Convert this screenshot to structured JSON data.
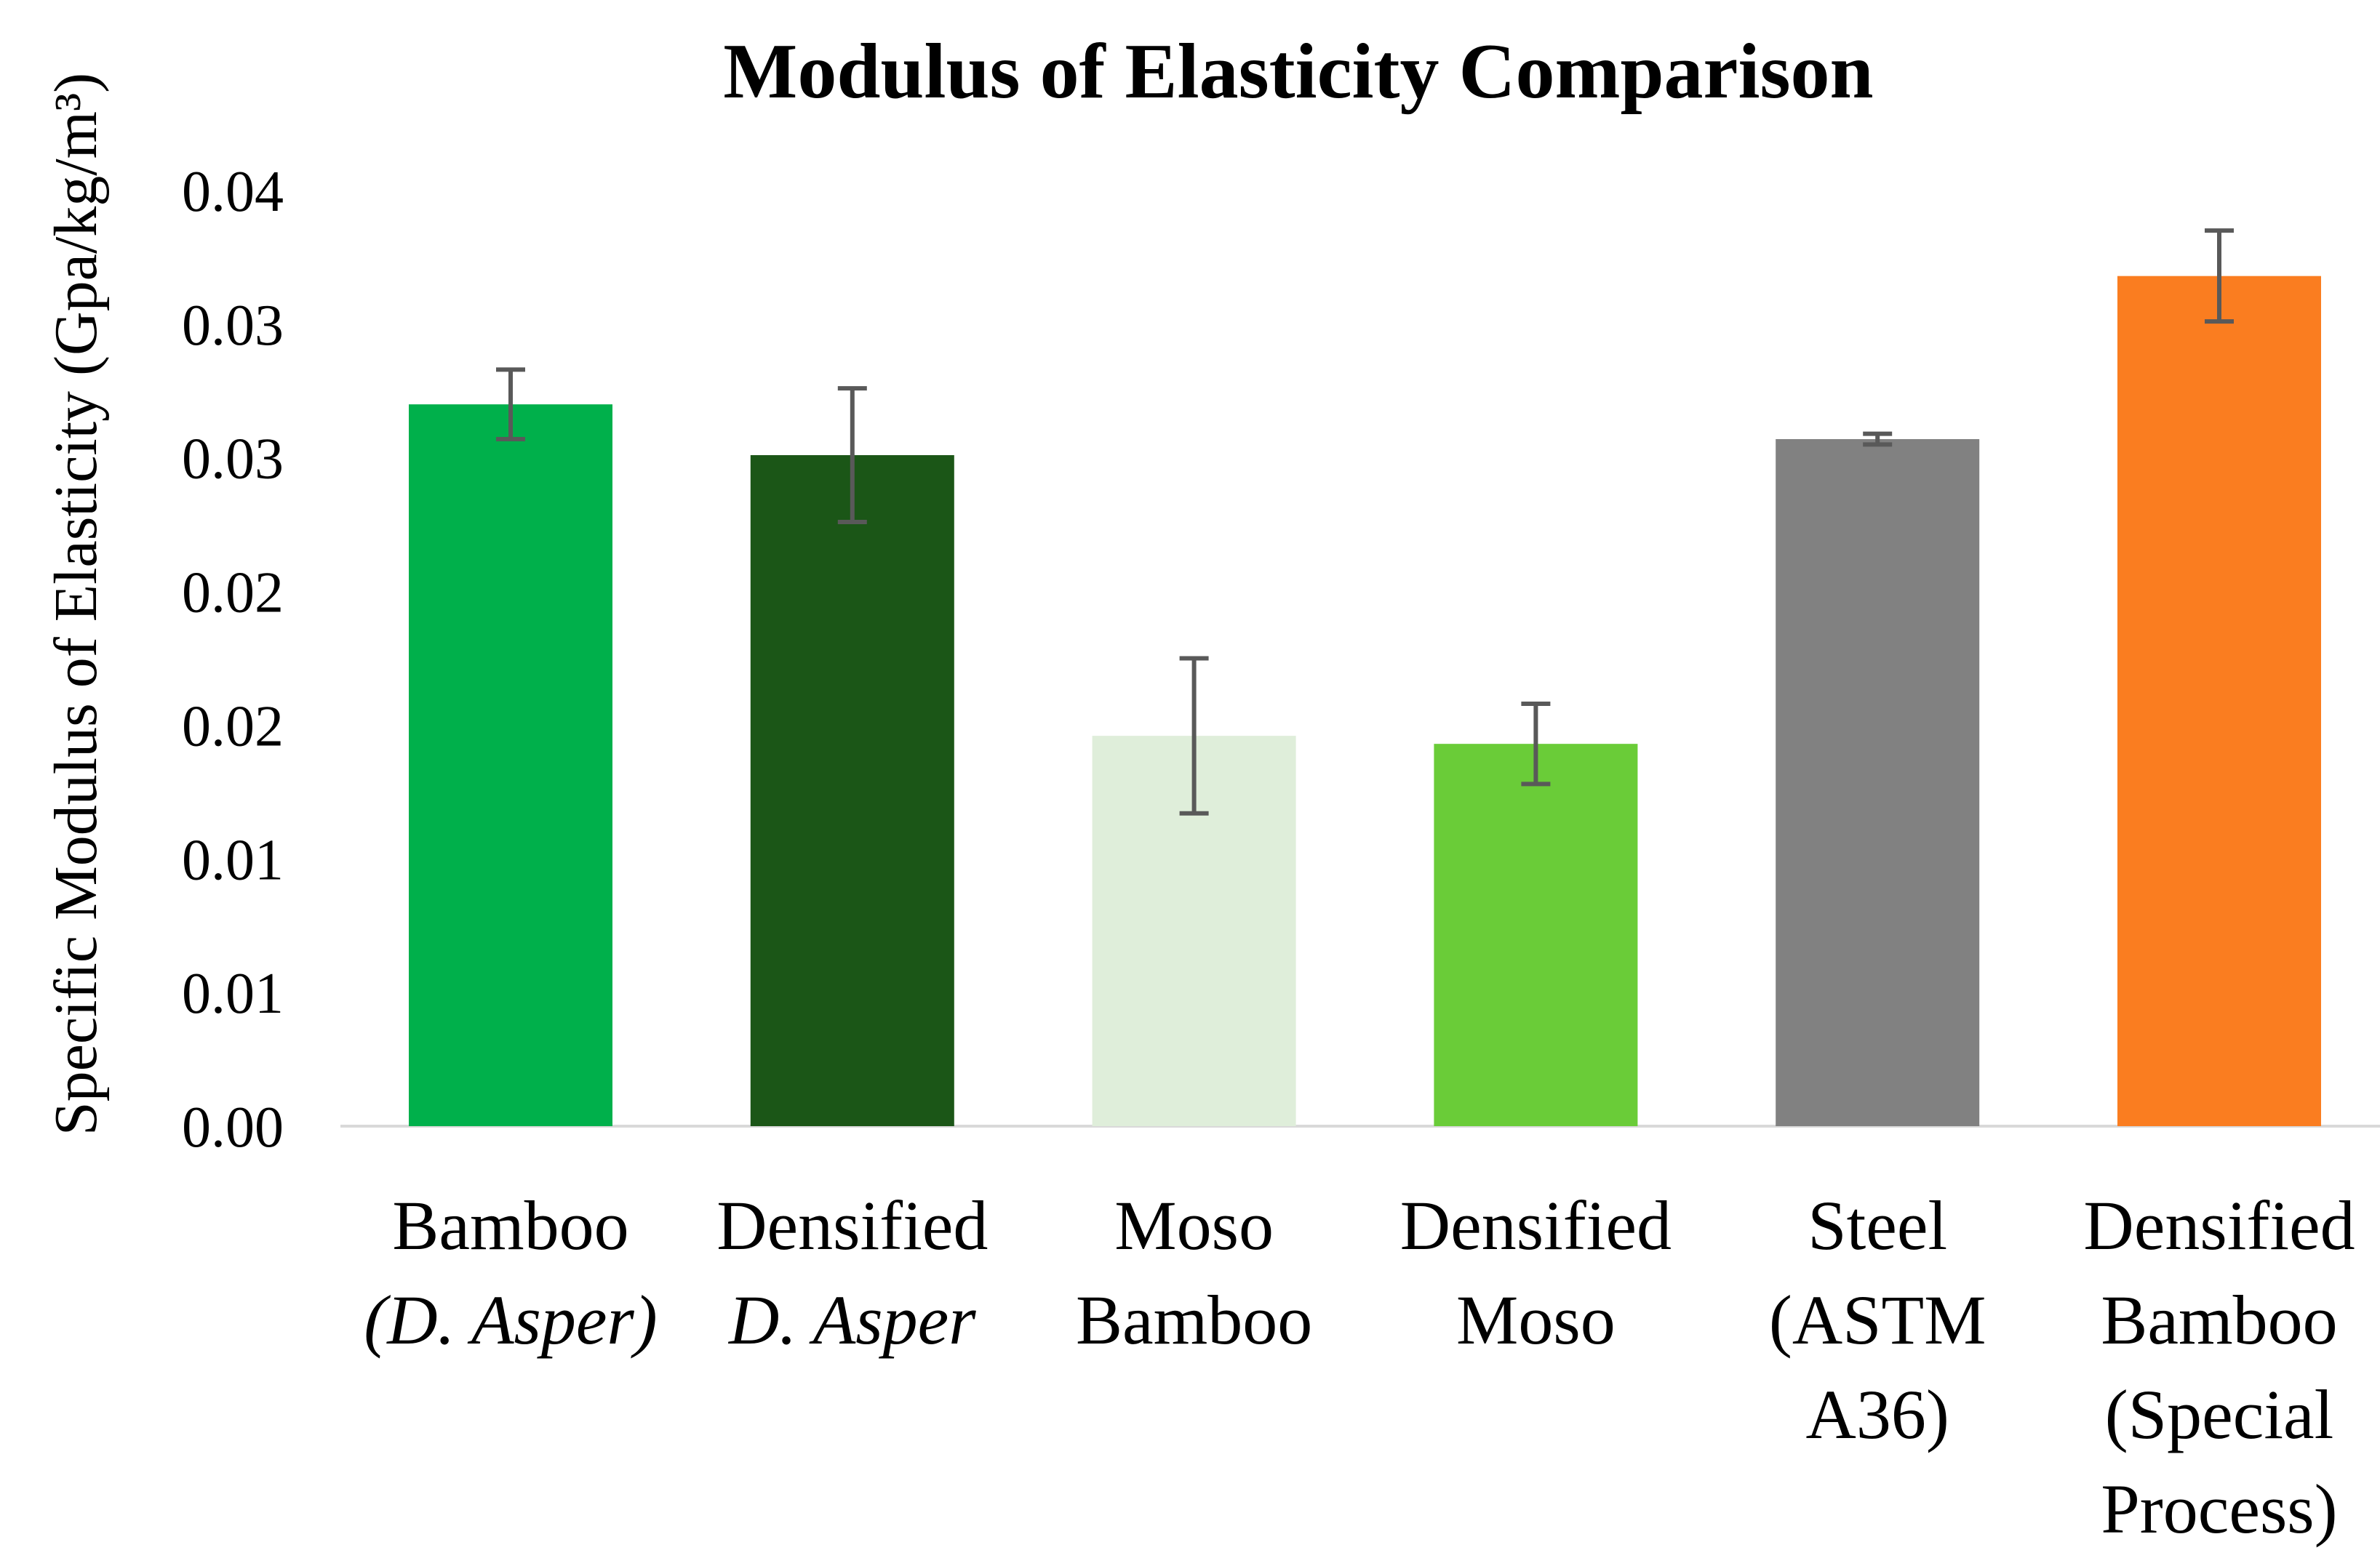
{
  "chart_data": {
    "type": "bar",
    "title": "Modulus of Elasticity Comparison",
    "xlabel": "",
    "ylabel": "Specific Modulus of Elasticity (Gpa/kg/m³)",
    "ylim": [
      0,
      0.035
    ],
    "ytick_step": 0.005,
    "ytick_labels_bottom_to_top": [
      "0.00",
      "0.01",
      "0.01",
      "0.02",
      "0.02",
      "0.03",
      "0.03",
      "0.04"
    ],
    "grid": false,
    "legend": false,
    "error_bars": true,
    "categories": [
      "Bamboo (D. Asper)",
      "Densified D. Asper",
      "Moso Bamboo",
      "Densified Moso",
      "Steel (ASTM A36)",
      "Densified Bamboo (Special Process)"
    ],
    "bars": [
      {
        "label": "Bamboo (D. Asper)",
        "label_lines": [
          {
            "text": "Bamboo",
            "italic": false
          },
          {
            "text": "(D. Asper)",
            "italic": true
          }
        ],
        "value": 0.027,
        "error": 0.0013,
        "color": "#00B04B"
      },
      {
        "label": "Densified D. Asper",
        "label_lines": [
          {
            "text": "Densified",
            "italic": false
          },
          {
            "text": "D. Asper",
            "italic": true
          }
        ],
        "value": 0.0251,
        "error": 0.0025,
        "color": "#1B5617"
      },
      {
        "label": "Moso Bamboo",
        "label_lines": [
          {
            "text": "Moso",
            "italic": false
          },
          {
            "text": "Bamboo",
            "italic": false
          }
        ],
        "value": 0.0146,
        "error": 0.0029,
        "color": "#DFEEDA"
      },
      {
        "label": "Densified Moso",
        "label_lines": [
          {
            "text": "Densified",
            "italic": false
          },
          {
            "text": "Moso",
            "italic": false
          }
        ],
        "value": 0.0143,
        "error": 0.0015,
        "color": "#6ACC38"
      },
      {
        "label": "Steel (ASTM A36)",
        "label_lines": [
          {
            "text": "Steel",
            "italic": false
          },
          {
            "text": "(ASTM",
            "italic": false
          },
          {
            "text": "A36)",
            "italic": false
          }
        ],
        "value": 0.0257,
        "error": 0.0002,
        "color": "#818181"
      },
      {
        "label": "Densified Bamboo (Special Process)",
        "label_lines": [
          {
            "text": "Densified",
            "italic": false
          },
          {
            "text": "Bamboo",
            "italic": false
          },
          {
            "text": "(Special",
            "italic": false
          },
          {
            "text": "Process)",
            "italic": false
          }
        ],
        "value": 0.0318,
        "error": 0.0017,
        "color": "#FA7D20"
      }
    ],
    "colors": {
      "background": "#FFFFFF",
      "text": "#000000",
      "axis_line": "#D9D9D9",
      "error_bar": "#595959"
    }
  }
}
